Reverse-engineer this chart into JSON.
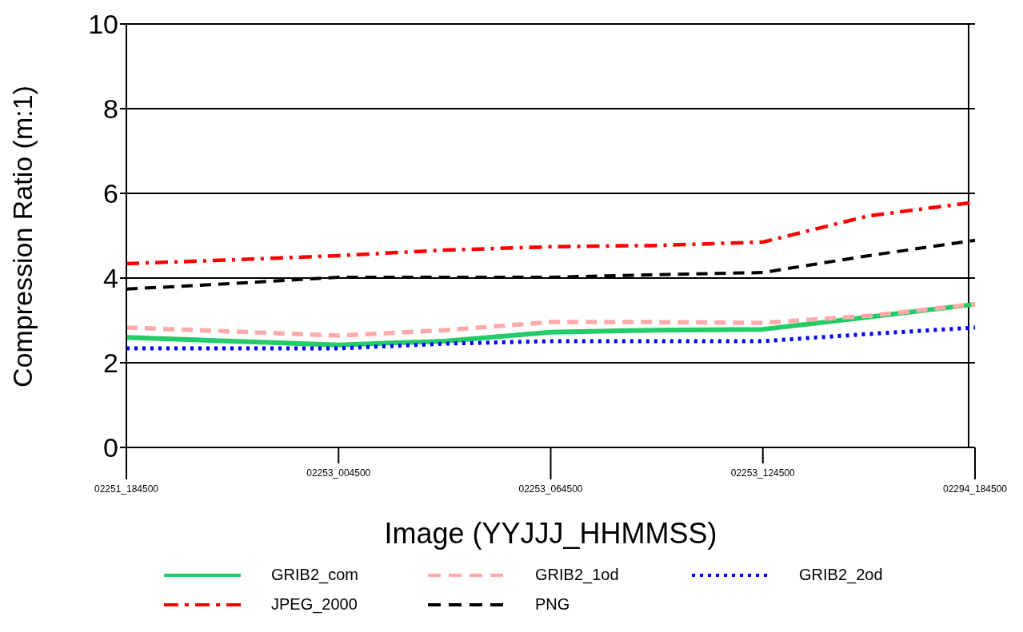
{
  "chart_data": {
    "type": "line",
    "xlabel": "Image (YYJJJ_HHMMSS)",
    "ylabel": "Compression Ratio (m:1)",
    "categories": [
      "02251_184500",
      null,
      "02253_004500",
      null,
      "02253_064500",
      null,
      "02253_124500",
      null,
      "02294_184500"
    ],
    "series": [
      {
        "name": "GRIB2_com",
        "color": "#22cc66",
        "line_style": "solid",
        "values": [
          2.6,
          2.51,
          2.42,
          2.51,
          2.72,
          2.77,
          2.79,
          3.08,
          3.38
        ]
      },
      {
        "name": "GRIB2_1od",
        "color": "#ffaaaa",
        "line_style": "dashed",
        "values": [
          2.83,
          2.74,
          2.64,
          2.77,
          2.96,
          2.96,
          2.94,
          3.11,
          3.38
        ]
      },
      {
        "name": "GRIB2_2od",
        "color": "#0000ff",
        "line_style": "dotted",
        "values": [
          2.34,
          2.34,
          2.34,
          2.45,
          2.51,
          2.51,
          2.51,
          2.68,
          2.83
        ]
      },
      {
        "name": "JPEG_2000",
        "color": "#ff0000",
        "line_style": "dashdot",
        "values": [
          4.34,
          4.43,
          4.53,
          4.66,
          4.74,
          4.77,
          4.85,
          5.47,
          5.79
        ]
      },
      {
        "name": "PNG",
        "color": "#000000",
        "line_style": "dashed",
        "values": [
          3.74,
          3.87,
          4.02,
          4.02,
          4.02,
          4.08,
          4.13,
          4.53,
          4.89
        ]
      }
    ],
    "ylim": [
      0,
      10
    ],
    "yticks": [
      0,
      2,
      4,
      6,
      8,
      10
    ],
    "grid": "y",
    "legend": "bottom",
    "marker": "none"
  }
}
